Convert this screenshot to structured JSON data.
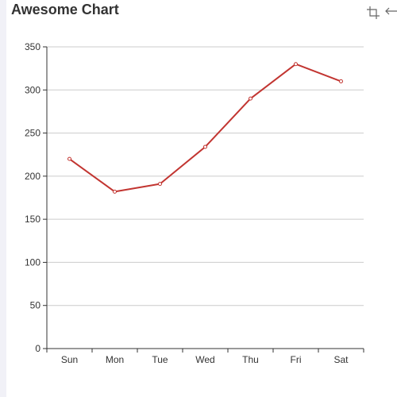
{
  "chart_data": {
    "type": "line",
    "title": "Awesome Chart",
    "categories": [
      "Sun",
      "Mon",
      "Tue",
      "Wed",
      "Thu",
      "Fri",
      "Sat"
    ],
    "series": [
      {
        "values": [
          220,
          182,
          191,
          234,
          290,
          330,
          310
        ]
      }
    ],
    "ylim": [
      0,
      350
    ],
    "yticks": [
      "0",
      "50",
      "100",
      "150",
      "200",
      "250",
      "300",
      "350"
    ],
    "xlabel": "",
    "ylabel": "",
    "grid": true,
    "line_color": "#c23531"
  },
  "toolbox": {
    "icons": [
      "zoom-select-icon",
      "zoom-back-icon"
    ],
    "icon_color": "#666666"
  }
}
